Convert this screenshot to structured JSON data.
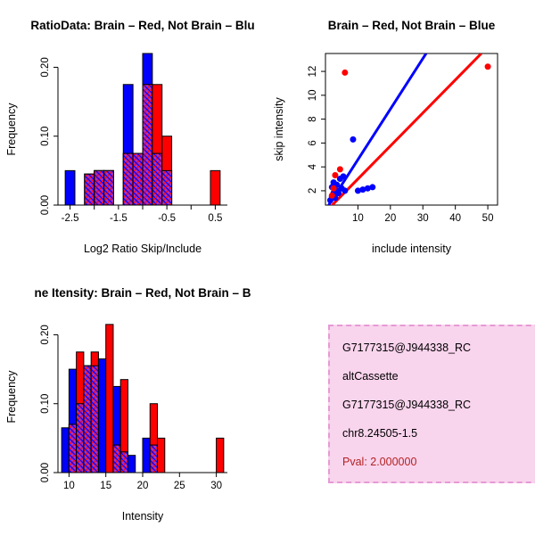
{
  "chart_data": [
    {
      "type": "bar",
      "variant": "overlaid-histogram",
      "title": "RatioData: Brain – Red, Not Brain – Blu",
      "xlabel": "Log2 Ratio Skip/Include",
      "ylabel": "Frequency",
      "xlim": [
        -2.75,
        0.75
      ],
      "ylim": [
        0,
        0.22
      ],
      "bins": {
        "start": -2.6,
        "width": 0.2
      },
      "axis": {
        "xticks": [
          -2.5,
          -2,
          -1.5,
          -1,
          -0.5,
          0,
          0.5
        ],
        "xtick_labels": [
          {
            "v": -2.5,
            "t": "-2.5"
          },
          {
            "v": -1.5,
            "t": "-1.5"
          },
          {
            "v": -0.5,
            "t": "-0.5"
          },
          {
            "v": 0.5,
            "t": "0.5"
          }
        ],
        "yticks": [
          0,
          0.1,
          0.2
        ],
        "ytick_labels": [
          "0.00",
          "0.10",
          "0.20"
        ]
      },
      "series": [
        {
          "name": "Not Brain",
          "color": "#0000ff",
          "values": [
            0.05,
            0,
            0.045,
            0.05,
            0.05,
            0,
            0.175,
            0.075,
            0.22,
            0.075,
            0.05,
            0,
            0,
            0,
            0,
            0
          ]
        },
        {
          "name": "Brain",
          "color": "#ff0000",
          "values": [
            0,
            0,
            0.045,
            0.05,
            0.05,
            0,
            0.075,
            0.075,
            0.175,
            0.175,
            0.1,
            0,
            0,
            0,
            0,
            0.05
          ]
        }
      ],
      "overlap_color": "#aa30c0"
    },
    {
      "type": "scatter",
      "title": "Brain – Red, Not Brain – Blue",
      "xlabel": "include intensity",
      "ylabel": "skip intensity",
      "xlim": [
        0,
        53
      ],
      "ylim": [
        0.8,
        13.5
      ],
      "axis": {
        "xticks": [
          10,
          20,
          30,
          40,
          50
        ],
        "yticks": [
          2,
          4,
          6,
          8,
          10,
          12
        ]
      },
      "series": [
        {
          "name": "Not Brain",
          "color": "#0000ff",
          "points": [
            [
              1.5,
              1.2
            ],
            [
              2,
              1.5
            ],
            [
              2,
              2.3
            ],
            [
              2.5,
              1.8
            ],
            [
              2.5,
              2.7
            ],
            [
              3,
              1.4
            ],
            [
              3,
              2.1
            ],
            [
              3.5,
              2.5
            ],
            [
              4,
              1.8
            ],
            [
              4.5,
              3.0
            ],
            [
              5,
              2.2
            ],
            [
              5.5,
              3.2
            ],
            [
              6,
              2.0
            ],
            [
              8.5,
              6.3
            ],
            [
              10,
              2.0
            ],
            [
              11.5,
              2.1
            ],
            [
              13,
              2.2
            ],
            [
              14.5,
              2.3
            ]
          ]
        },
        {
          "name": "Brain",
          "color": "#ff0000",
          "points": [
            [
              2,
              1.6
            ],
            [
              2.5,
              2.2
            ],
            [
              3,
              3.3
            ],
            [
              4.5,
              3.8
            ],
            [
              6,
              11.9
            ],
            [
              50,
              12.4
            ]
          ]
        }
      ],
      "lines": [
        {
          "name": "not-brain-fit",
          "color": "#0000ff",
          "from": [
            1,
            0.8
          ],
          "to": [
            31,
            13.5
          ]
        },
        {
          "name": "brain-fit",
          "color": "#ff0000",
          "from": [
            1,
            0.5
          ],
          "to": [
            48,
            13.5
          ]
        }
      ]
    },
    {
      "type": "bar",
      "variant": "overlaid-histogram",
      "title": "ne Itensity: Brain – Red, Not Brain – B",
      "xlabel": "Intensity",
      "ylabel": "Frequency",
      "xlim": [
        8.5,
        31.5
      ],
      "ylim": [
        0,
        0.22
      ],
      "bins": {
        "start": 9,
        "width": 1
      },
      "axis": {
        "xticks": [
          10,
          15,
          20,
          25,
          30
        ],
        "xtick_labels": [
          {
            "v": 10,
            "t": "10"
          },
          {
            "v": 15,
            "t": "15"
          },
          {
            "v": 20,
            "t": "20"
          },
          {
            "v": 25,
            "t": "25"
          },
          {
            "v": 30,
            "t": "30"
          }
        ],
        "yticks": [
          0,
          0.1,
          0.2
        ],
        "ytick_labels": [
          "0.00",
          "0.10",
          "0.20"
        ]
      },
      "series": [
        {
          "name": "Not Brain",
          "color": "#0000ff",
          "values": [
            0.065,
            0.15,
            0.1,
            0.155,
            0.155,
            0.165,
            0,
            0.125,
            0.03,
            0.025,
            0,
            0.05,
            0.04,
            0,
            0,
            0,
            0,
            0,
            0,
            0,
            0,
            0
          ]
        },
        {
          "name": "Brain",
          "color": "#ff0000",
          "values": [
            0,
            0.07,
            0.175,
            0.155,
            0.175,
            0,
            0.215,
            0.04,
            0.135,
            0,
            0,
            0,
            0.1,
            0.05,
            0,
            0,
            0,
            0,
            0,
            0,
            0,
            0.05
          ]
        }
      ],
      "overlap_color": "#aa30c0"
    }
  ],
  "info_box": {
    "bg": "#f9d4ed",
    "border": "#e59ad5",
    "lines": [
      {
        "text": "G7177315@J944338_RC",
        "color": "#000000"
      },
      {
        "text": "altCassette",
        "color": "#000000"
      },
      {
        "text": "G7177315@J944338_RC",
        "color": "#000000"
      },
      {
        "text": "chr8.24505-1.5",
        "color": "#000000"
      },
      {
        "text": "Pval: 2.000000",
        "color": "#b22222"
      }
    ]
  }
}
